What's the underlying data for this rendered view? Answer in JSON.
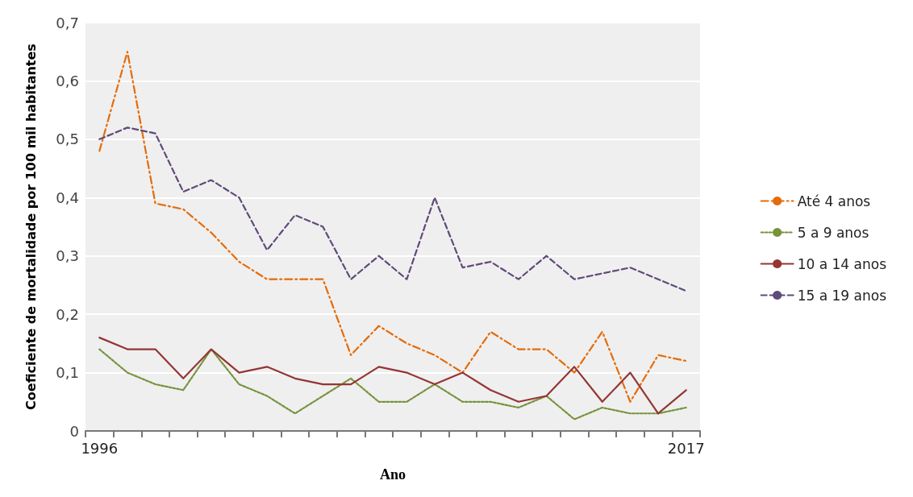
{
  "chart_data": {
    "type": "line",
    "xlabel": "Ano",
    "ylabel": "Coeficiente de mortalidade por 100 mil habitantes",
    "categories": [
      "1996",
      null,
      null,
      null,
      null,
      null,
      null,
      null,
      null,
      null,
      null,
      null,
      null,
      null,
      null,
      null,
      null,
      null,
      null,
      null,
      null,
      "2017"
    ],
    "ylim": [
      0,
      0.7
    ],
    "yticks": [
      {
        "value": 0,
        "label": "0"
      },
      {
        "value": 0.1,
        "label": "0,1"
      },
      {
        "value": 0.2,
        "label": "0,2"
      },
      {
        "value": 0.3,
        "label": "0,3"
      },
      {
        "value": 0.4,
        "label": "0,4"
      },
      {
        "value": 0.5,
        "label": "0,5"
      },
      {
        "value": 0.6,
        "label": "0,6"
      },
      {
        "value": 0.7,
        "label": "0,7"
      }
    ],
    "grid": "y",
    "legend": "right",
    "marker": "none",
    "series": [
      {
        "name": "Até 4 anos",
        "color": "#e46c0a",
        "line_style": "dashdot",
        "values": [
          0.48,
          0.65,
          0.39,
          0.38,
          0.34,
          0.29,
          0.26,
          0.26,
          0.26,
          0.13,
          0.18,
          0.15,
          0.13,
          0.1,
          0.17,
          0.14,
          0.14,
          0.1,
          0.17,
          0.05,
          0.13,
          0.12
        ]
      },
      {
        "name": "5 a 9 anos",
        "color": "#77933c",
        "line_style": "dotted",
        "values": [
          0.14,
          0.1,
          0.08,
          0.07,
          0.14,
          0.08,
          0.06,
          0.03,
          0.06,
          0.09,
          0.05,
          0.05,
          0.08,
          0.05,
          0.05,
          0.04,
          0.06,
          0.02,
          0.04,
          0.03,
          0.03,
          0.04
        ]
      },
      {
        "name": "10 a 14 anos",
        "color": "#943634",
        "line_style": "solid",
        "values": [
          0.16,
          0.14,
          0.14,
          0.09,
          0.14,
          0.1,
          0.11,
          0.09,
          0.08,
          0.08,
          0.11,
          0.1,
          0.08,
          0.1,
          0.07,
          0.05,
          0.06,
          0.11,
          0.05,
          0.1,
          0.03,
          0.07
        ]
      },
      {
        "name": "15 a 19 anos",
        "color": "#604a7b",
        "line_style": "dashed",
        "values": [
          0.5,
          0.52,
          0.51,
          0.41,
          0.43,
          0.4,
          0.31,
          0.37,
          0.35,
          0.26,
          0.3,
          0.26,
          0.4,
          0.28,
          0.29,
          0.26,
          0.3,
          0.26,
          0.27,
          0.28,
          0.26,
          0.24
        ]
      }
    ]
  }
}
